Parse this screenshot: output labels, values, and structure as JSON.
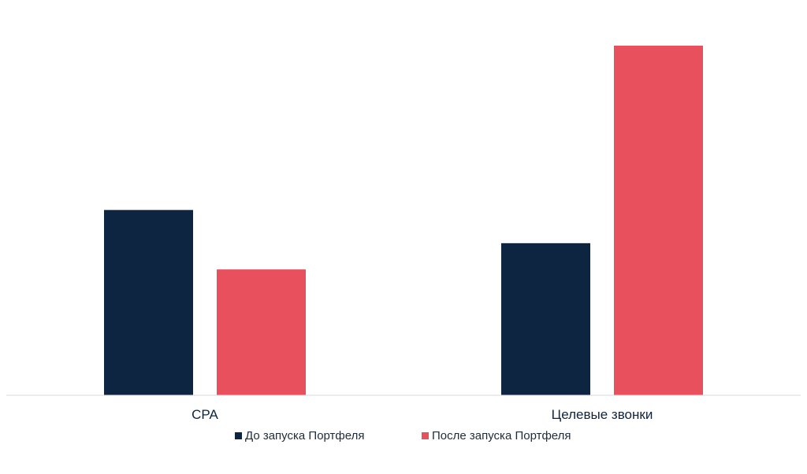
{
  "chart_data": {
    "type": "bar",
    "title": "",
    "xlabel": "",
    "ylabel": "",
    "grid": false,
    "legend_position": "bottom",
    "categories": [
      "CPA",
      "Целевые звонки"
    ],
    "series": [
      {
        "name": "До запуска Портфеля",
        "color": "#0d2541",
        "values": [
          53,
          43.5
        ]
      },
      {
        "name": "После запуска Портфеля",
        "color": "#e8505e",
        "values": [
          36,
          100
        ]
      }
    ],
    "ylim": [
      0,
      100
    ]
  }
}
